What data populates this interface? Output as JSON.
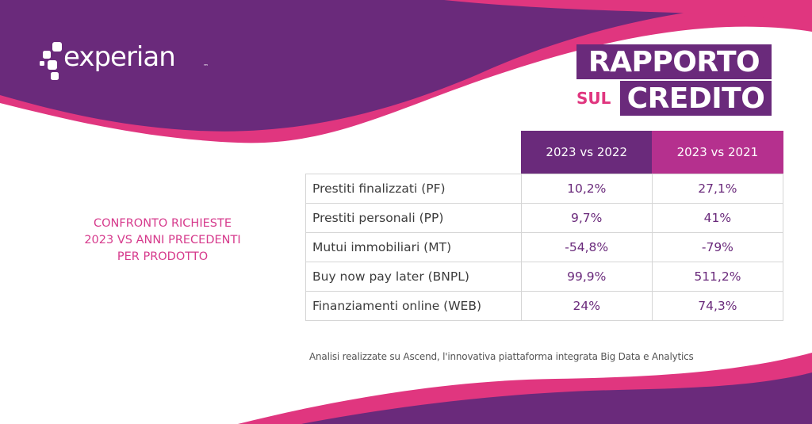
{
  "colors": {
    "purple": "#6a2a7b",
    "magenta": "#b5308e",
    "pink": "#e0367f",
    "heading_pink": "#d63a8c"
  },
  "logo": {
    "word": "experian",
    "tm": "™"
  },
  "brand": {
    "line1": "RAPPORTO",
    "sul": "SUL",
    "line2": "CREDITO"
  },
  "side_heading": {
    "line1": "CONFRONTO RICHIESTE",
    "line2": "2023 VS ANNI PRECEDENTI",
    "line3": "PER PRODOTTO"
  },
  "table": {
    "col1": "2023 vs 2022",
    "col2": "2023 vs 2021",
    "rows": [
      {
        "label": "Prestiti finalizzati (PF)",
        "v1": "10,2%",
        "v2": "27,1%"
      },
      {
        "label": "Prestiti personali (PP)",
        "v1": "9,7%",
        "v2": "41%"
      },
      {
        "label": "Mutui immobiliari (MT)",
        "v1": "-54,8%",
        "v2": "-79%"
      },
      {
        "label": "Buy now pay later (BNPL)",
        "v1": "99,9%",
        "v2": "511,2%"
      },
      {
        "label": "Finanziamenti online (WEB)",
        "v1": "24%",
        "v2": "74,3%"
      }
    ]
  },
  "footnote": "Analisi realizzate su Ascend, l'innovativa piattaforma integrata Big Data e Analytics"
}
